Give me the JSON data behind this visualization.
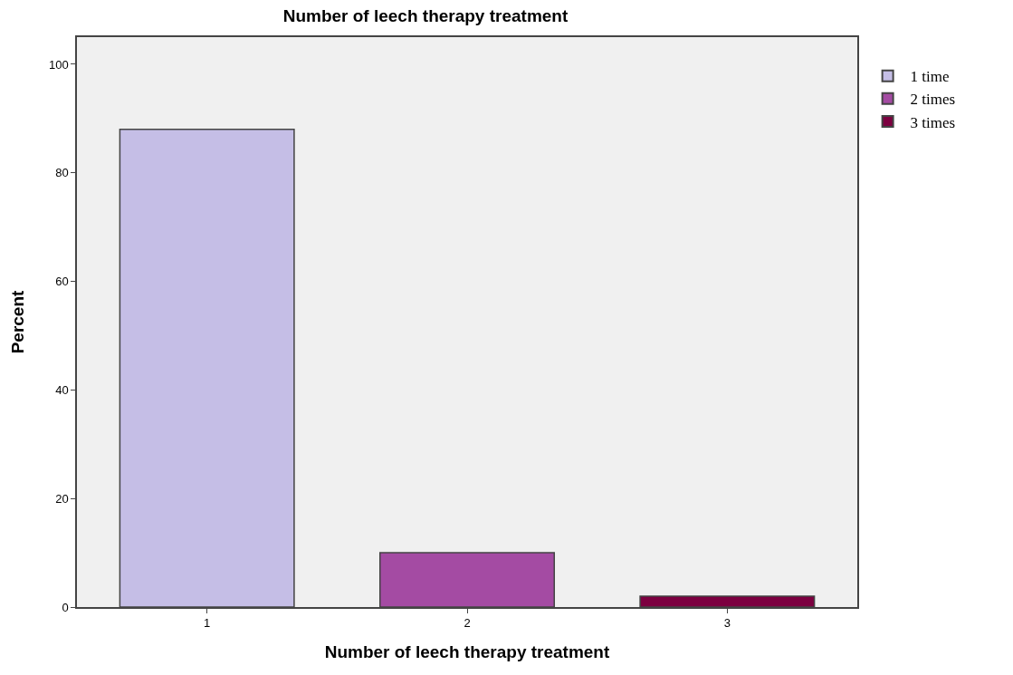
{
  "chart_data": {
    "type": "bar",
    "title": "Number of leech therapy treatment",
    "xlabel": "Number of leech therapy treatment",
    "ylabel": "Percent",
    "categories": [
      "1",
      "2",
      "3"
    ],
    "series": [
      {
        "name": "1 time",
        "color": "#c5bee6",
        "values": [
          88,
          null,
          null
        ]
      },
      {
        "name": "2 times",
        "color": "#a44ba3",
        "values": [
          null,
          10,
          null
        ]
      },
      {
        "name": "3 times",
        "color": "#7c0040",
        "values": [
          null,
          null,
          2
        ]
      }
    ],
    "ylim": [
      0,
      105
    ],
    "yticks": [
      0,
      20,
      40,
      60,
      80,
      100
    ],
    "grid": false,
    "legend": "right"
  }
}
